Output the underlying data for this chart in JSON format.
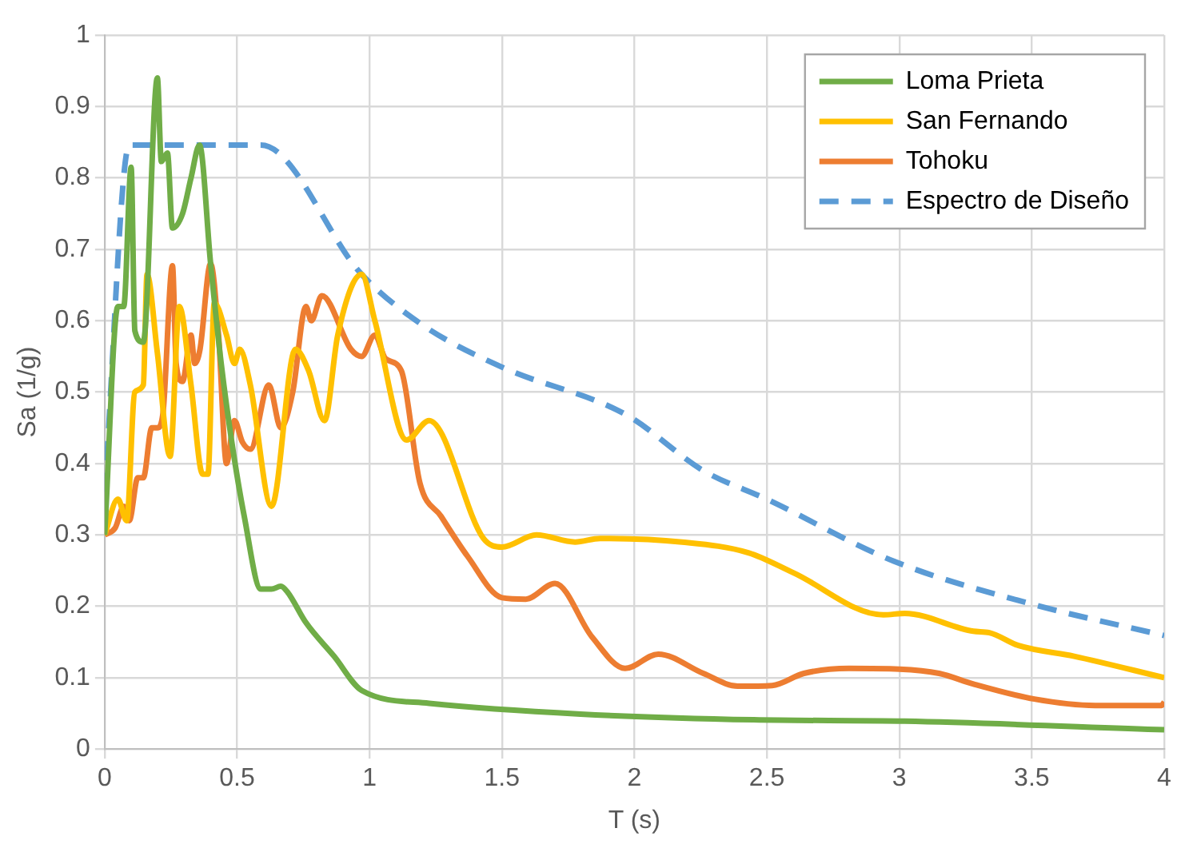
{
  "chart_data": {
    "type": "line",
    "xlabel": "T (s)",
    "ylabel": "Sa (1/g)",
    "xlim": [
      0,
      4
    ],
    "xticks": [
      0,
      0.5,
      1,
      1.5,
      2,
      2.5,
      3,
      3.5,
      4
    ],
    "ylim": [
      0,
      1
    ],
    "yticks": [
      0,
      0.1,
      0.2,
      0.3,
      0.4,
      0.5,
      0.6,
      0.7,
      0.8,
      0.9,
      1
    ],
    "grid": true,
    "legend": "top right",
    "marker": "none",
    "line_style": "solid",
    "series": [
      {
        "name": "Loma Prieta",
        "color": "#70ad47",
        "x": [
          0,
          0.05,
          0.072,
          0.1,
          0.114,
          0.146,
          0.199,
          0.214,
          0.237,
          0.256,
          0.294,
          0.326,
          0.358,
          0.4,
          0.44,
          0.48,
          0.527,
          0.59,
          0.63,
          0.665,
          0.69,
          0.76,
          0.866,
          0.971,
          1.225,
          1.797,
          2.45,
          3.02,
          4
        ],
        "values": [
          0.3,
          0.62,
          0.62,
          0.815,
          0.586,
          0.57,
          0.94,
          0.823,
          0.835,
          0.73,
          0.75,
          0.8,
          0.846,
          0.68,
          0.54,
          0.43,
          0.326,
          0.224,
          0.224,
          0.228,
          0.22,
          0.177,
          0.13,
          0.082,
          0.064,
          0.049,
          0.041,
          0.039,
          0.027
        ]
      },
      {
        "name": "San Fernando",
        "color": "#ffc000",
        "x": [
          0,
          0.05,
          0.083,
          0.114,
          0.146,
          0.16,
          0.199,
          0.247,
          0.282,
          0.326,
          0.37,
          0.39,
          0.414,
          0.46,
          0.49,
          0.51,
          0.55,
          0.63,
          0.72,
          0.77,
          0.83,
          0.88,
          0.97,
          1.02,
          1.14,
          1.225,
          1.43,
          1.5,
          1.63,
          1.776,
          1.87,
          2.18,
          2.43,
          2.6,
          2.94,
          3.02,
          3.28,
          3.34,
          3.45,
          3.66,
          4
        ],
        "values": [
          0.3,
          0.35,
          0.32,
          0.5,
          0.51,
          0.665,
          0.555,
          0.41,
          0.62,
          0.51,
          0.385,
          0.385,
          0.625,
          0.58,
          0.54,
          0.56,
          0.51,
          0.34,
          0.56,
          0.53,
          0.46,
          0.58,
          0.665,
          0.6,
          0.433,
          0.46,
          0.295,
          0.283,
          0.3,
          0.29,
          0.295,
          0.29,
          0.275,
          0.247,
          0.188,
          0.19,
          0.165,
          0.163,
          0.145,
          0.13,
          0.1
        ]
      },
      {
        "name": "Tohoku",
        "color": "#ed7d31",
        "x": [
          0,
          0.04,
          0.072,
          0.093,
          0.125,
          0.146,
          0.178,
          0.199,
          0.22,
          0.256,
          0.27,
          0.294,
          0.326,
          0.34,
          0.36,
          0.4,
          0.43,
          0.46,
          0.49,
          0.52,
          0.55,
          0.62,
          0.665,
          0.71,
          0.76,
          0.78,
          0.82,
          0.93,
          0.97,
          1.02,
          1.06,
          1.12,
          1.19,
          1.27,
          1.37,
          1.5,
          1.59,
          1.7,
          1.84,
          1.965,
          2.09,
          2.26,
          2.39,
          2.52,
          2.64,
          2.81,
          3,
          3.15,
          3.28,
          3.51,
          3.74,
          3.99,
          4
        ],
        "values": [
          0.3,
          0.31,
          0.34,
          0.32,
          0.38,
          0.38,
          0.45,
          0.45,
          0.47,
          0.677,
          0.54,
          0.515,
          0.58,
          0.54,
          0.56,
          0.68,
          0.58,
          0.4,
          0.46,
          0.43,
          0.42,
          0.51,
          0.45,
          0.5,
          0.62,
          0.6,
          0.635,
          0.56,
          0.55,
          0.58,
          0.547,
          0.53,
          0.373,
          0.326,
          0.27,
          0.212,
          0.21,
          0.232,
          0.157,
          0.113,
          0.133,
          0.106,
          0.088,
          0.089,
          0.106,
          0.113,
          0.112,
          0.106,
          0.091,
          0.07,
          0.061,
          0.061,
          0.066
        ]
      },
      {
        "name": "Espectro de Diseño",
        "color": "#5b9bd5",
        "line_style": "dashed",
        "x": [
          0,
          0.093,
          0.59,
          0.97,
          1.2,
          1.5,
          1.97,
          2.26,
          2.5,
          2.98,
          3.49,
          4
        ],
        "values": [
          0.36,
          0.846,
          0.846,
          0.665,
          0.594,
          0.535,
          0.468,
          0.39,
          0.35,
          0.263,
          0.204,
          0.159
        ]
      }
    ]
  }
}
